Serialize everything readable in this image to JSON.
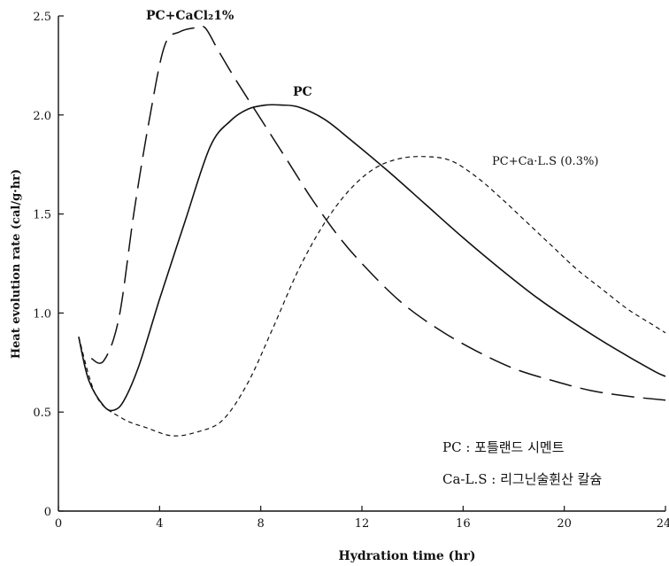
{
  "chart_data": {
    "type": "line",
    "xlabel": "Hydration time (hr)",
    "ylabel": "Heat evolution rate (cal/g·hr)",
    "xlim": [
      0,
      24
    ],
    "ylim": [
      0,
      2.5
    ],
    "x_ticks": [
      "0",
      "4",
      "8",
      "12",
      "16",
      "20",
      "24"
    ],
    "y_ticks": [
      "0",
      "0.5",
      "1.0",
      "1.5",
      "2.0",
      "2.5"
    ],
    "grid": false,
    "series": [
      {
        "name": "PC",
        "style": "solid",
        "x": [
          0.8,
          1.2,
          1.8,
          2.2,
          2.6,
          3.2,
          4.0,
          5.0,
          6.0,
          6.8,
          7.5,
          8.2,
          8.8,
          9.5,
          10.5,
          11.5,
          13.0,
          14.5,
          16.0,
          17.5,
          19.0,
          20.5,
          22.0,
          23.5,
          24.0
        ],
        "y": [
          0.88,
          0.66,
          0.53,
          0.51,
          0.56,
          0.74,
          1.07,
          1.46,
          1.84,
          1.97,
          2.03,
          2.05,
          2.05,
          2.04,
          1.98,
          1.88,
          1.72,
          1.55,
          1.38,
          1.22,
          1.07,
          0.94,
          0.82,
          0.71,
          0.68
        ]
      },
      {
        "name": "PC+CaCl₂1%",
        "style": "long-dash",
        "x": [
          1.3,
          1.8,
          2.4,
          3.0,
          3.6,
          4.2,
          4.8,
          5.4,
          5.8,
          6.3,
          7.0,
          8.0,
          9.0,
          10.0,
          11.0,
          12.0,
          13.5,
          15.0,
          16.5,
          18.0,
          19.5,
          21.0,
          22.5,
          24.0
        ],
        "y": [
          0.77,
          0.76,
          0.98,
          1.52,
          1.98,
          2.35,
          2.42,
          2.44,
          2.44,
          2.33,
          2.18,
          1.98,
          1.78,
          1.58,
          1.4,
          1.25,
          1.06,
          0.92,
          0.81,
          0.72,
          0.66,
          0.61,
          0.58,
          0.56
        ]
      },
      {
        "name": "PC+Ca·L.S (0.3%)",
        "style": "short-dash",
        "x": [
          0.8,
          1.5,
          2.5,
          3.5,
          4.5,
          5.5,
          6.5,
          7.5,
          8.5,
          9.5,
          10.5,
          11.5,
          12.5,
          13.5,
          14.5,
          15.5,
          16.5,
          17.5,
          18.5,
          19.5,
          20.5,
          21.5,
          22.5,
          23.5,
          24.0
        ],
        "y": [
          0.88,
          0.58,
          0.47,
          0.42,
          0.38,
          0.4,
          0.46,
          0.65,
          0.93,
          1.22,
          1.45,
          1.62,
          1.73,
          1.78,
          1.79,
          1.77,
          1.69,
          1.58,
          1.46,
          1.34,
          1.22,
          1.12,
          1.02,
          0.94,
          0.9
        ]
      }
    ],
    "annotations": {
      "cacl2_label": "PC+CaCl₂1%",
      "pc_label": "PC",
      "ls_label": "PC+Ca·L.S (0.3%)",
      "legend_line1": "PC : 포틀랜드 시멘트",
      "legend_line2": "Ca-L.S : 리그닌술휜산 칼슘"
    }
  }
}
